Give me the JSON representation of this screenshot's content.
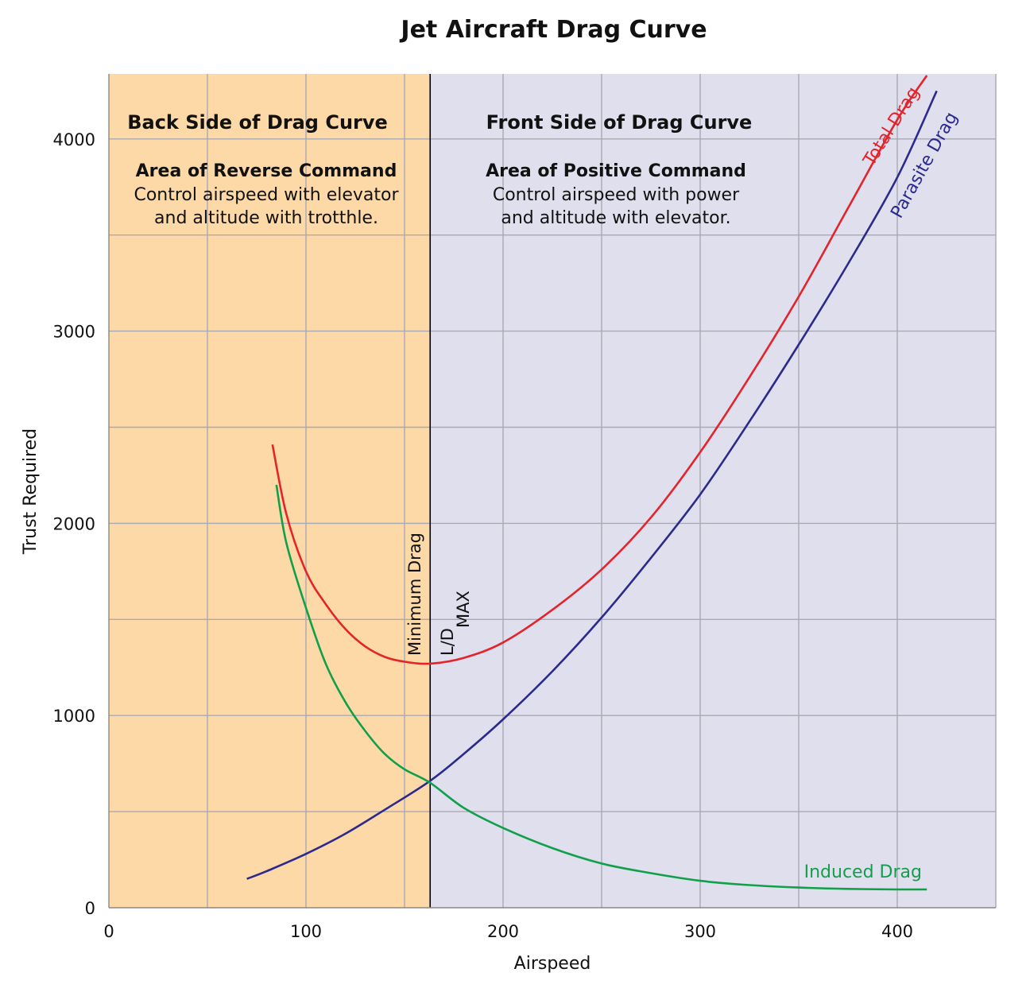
{
  "chart_data": {
    "type": "line",
    "title": "Jet Aircraft Drag Curve",
    "xlabel": "Airspeed",
    "ylabel": "Trust Required",
    "xlim": [
      0,
      450
    ],
    "ylim": [
      0,
      4200
    ],
    "x_ticks": [
      0,
      100,
      200,
      300,
      400
    ],
    "y_ticks": [
      0,
      1000,
      2000,
      3000,
      4000
    ],
    "x_grid_step": 50,
    "y_grid_step": 500,
    "grid": true,
    "divider_x": 163,
    "regions": [
      {
        "name": "back",
        "x_range": [
          0,
          163
        ],
        "color": "#fdd9a8",
        "title": "Back Side of Drag Curve",
        "subtitle": "Area of Reverse Command",
        "lines": [
          "Control airspeed with elevator",
          "and altitude with trotthle."
        ]
      },
      {
        "name": "front",
        "x_range": [
          163,
          450
        ],
        "color": "#e0dfee",
        "title": "Front Side of Drag Curve",
        "subtitle": "Area of Positive Command",
        "lines": [
          "Control airspeed with power",
          "and altitude with elevator."
        ]
      }
    ],
    "annotations": {
      "min_drag": "Minimum Drag",
      "ld": "L/D",
      "ld_sub": "MAX"
    },
    "series": [
      {
        "name": "Total Drag",
        "color": "#e3242b",
        "x": [
          83,
          90,
          100,
          110,
          120,
          130,
          140,
          150,
          163,
          180,
          200,
          225,
          250,
          275,
          300,
          325,
          350,
          375,
          400,
          415
        ],
        "y": [
          2410,
          2050,
          1750,
          1580,
          1450,
          1360,
          1305,
          1280,
          1270,
          1300,
          1380,
          1550,
          1760,
          2030,
          2370,
          2760,
          3180,
          3640,
          4100,
          4330
        ]
      },
      {
        "name": "Parasite Drag",
        "color": "#2c2a8c",
        "x": [
          70,
          80,
          100,
          120,
          140,
          163,
          180,
          200,
          225,
          250,
          275,
          300,
          325,
          350,
          375,
          400,
          420
        ],
        "y": [
          150,
          190,
          280,
          385,
          510,
          660,
          800,
          980,
          1230,
          1510,
          1820,
          2150,
          2530,
          2930,
          3350,
          3800,
          4250
        ]
      },
      {
        "name": "Induced Drag",
        "color": "#11a04a",
        "x": [
          85,
          90,
          100,
          110,
          120,
          130,
          140,
          150,
          163,
          180,
          200,
          225,
          250,
          275,
          300,
          325,
          350,
          375,
          400,
          415
        ],
        "y": [
          2200,
          1900,
          1560,
          1270,
          1070,
          920,
          800,
          720,
          650,
          520,
          415,
          310,
          230,
          180,
          140,
          118,
          105,
          98,
          95,
          95
        ]
      }
    ]
  }
}
